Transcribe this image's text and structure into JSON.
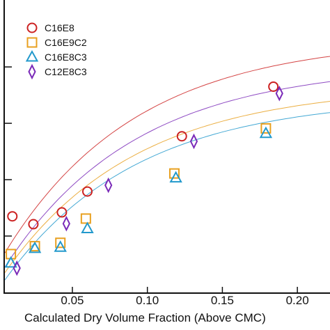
{
  "chart_data": {
    "type": "scatter",
    "xlabel": "Calculated Dry Volume Fraction (Above CMC)",
    "ylabel": "",
    "xlim": [
      0.005,
      0.225
    ],
    "ylim": [
      0.0,
      5.2
    ],
    "x_ticks": [
      0.05,
      0.1,
      0.15,
      0.2
    ],
    "x_tick_labels": [
      "0.05",
      "0.10",
      "0.15",
      "0.20"
    ],
    "y_ticks": [
      1,
      2,
      3,
      4
    ],
    "legend_position": "top-left",
    "series": [
      {
        "name": "C16E8",
        "marker": "circle",
        "color": "#cc2222",
        "x": [
          0.01,
          0.024,
          0.043,
          0.06,
          0.123,
          0.184
        ],
        "y": [
          1.35,
          1.21,
          1.42,
          1.79,
          2.77,
          3.65
        ],
        "fit_x": [
          0.005,
          0.225
        ],
        "fit": [
          0.7,
          4.2
        ]
      },
      {
        "name": "C16E9C2",
        "marker": "square",
        "color": "#e8a020",
        "x": [
          0.009,
          0.025,
          0.042,
          0.059,
          0.118,
          0.179
        ],
        "y": [
          0.68,
          0.82,
          0.88,
          1.31,
          2.11,
          2.91
        ],
        "fit_x": [
          0.005,
          0.225
        ],
        "fit": [
          0.35,
          3.4
        ]
      },
      {
        "name": "C16E8C3",
        "marker": "triangle",
        "color": "#2299cc",
        "x": [
          0.009,
          0.025,
          0.042,
          0.06,
          0.119,
          0.179
        ],
        "y": [
          0.52,
          0.78,
          0.8,
          1.13,
          2.03,
          2.82
        ],
        "fit_x": [
          0.005,
          0.225
        ],
        "fit": [
          0.22,
          3.2
        ]
      },
      {
        "name": "C12E8C3",
        "marker": "diamond",
        "color": "#7a2ab8",
        "x": [
          0.013,
          0.046,
          0.074,
          0.131,
          0.188
        ],
        "y": [
          0.43,
          1.22,
          1.9,
          2.68,
          3.53
        ],
        "fit_x": [
          0.005,
          0.225
        ],
        "fit": [
          0.45,
          3.75
        ]
      }
    ]
  }
}
